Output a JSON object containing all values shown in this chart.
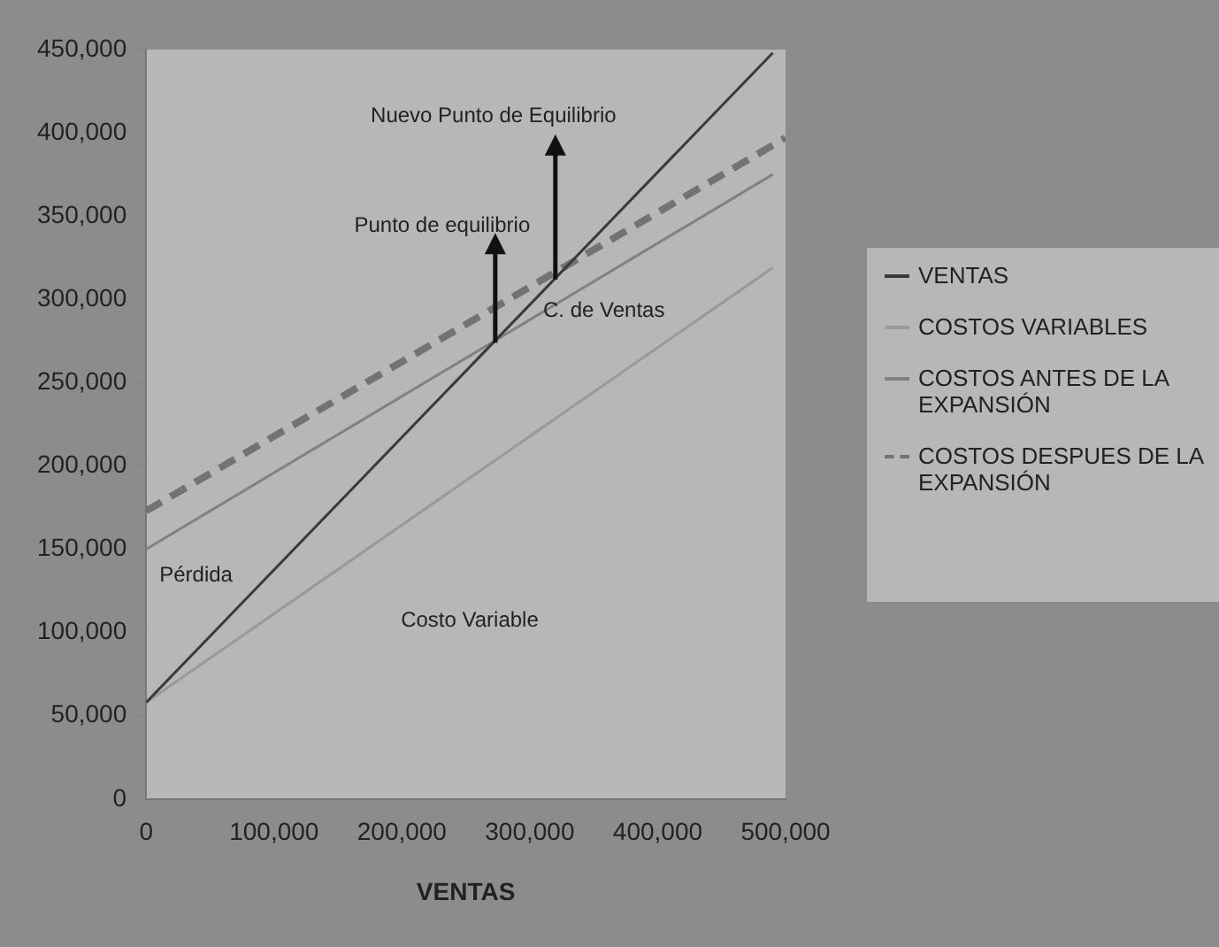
{
  "chart_data": {
    "type": "line",
    "xlabel": "VENTAS",
    "xlim": [
      0,
      500000
    ],
    "xticks": [
      0,
      {
        "value": 100000,
        "label": "100,000"
      },
      {
        "value": 200000,
        "label": "200,000"
      },
      {
        "value": 300000,
        "label": "300,000"
      },
      {
        "value": 400000,
        "label": "400,000"
      },
      {
        "value": 500000,
        "label": "500,000"
      }
    ],
    "ylim": [
      0,
      450000
    ],
    "yticks": [
      0,
      {
        "value": 50000,
        "label": "50,000"
      },
      {
        "value": 100000,
        "label": "100,000"
      },
      {
        "value": 150000,
        "label": "150,000"
      },
      {
        "value": 200000,
        "label": "200,000"
      },
      {
        "value": 250000,
        "label": "250,000"
      },
      {
        "value": 300000,
        "label": "300,000"
      },
      {
        "value": 350000,
        "label": "350,000"
      },
      {
        "value": 400000,
        "label": "400,000"
      },
      {
        "value": 450000,
        "label": "450,000"
      }
    ],
    "grid": false,
    "legend": "right",
    "marker": "none",
    "series": [
      {
        "name": "VENTAS",
        "color": "#3a3a3c",
        "x": [
          0,
          490000
        ],
        "values": [
          58000,
          448000
        ]
      },
      {
        "name": "COSTOS VARIABLES",
        "color": "#98999b",
        "x": [
          0,
          490000
        ],
        "values": [
          58000,
          319000
        ]
      },
      {
        "name": "COSTOS ANTES DE LA EXPANSIÓN",
        "color": "#808183",
        "x": [
          0,
          490000
        ],
        "values": [
          150000,
          375000
        ]
      },
      {
        "name": "COSTOS DESPUES DE LA EXPANSIÓN",
        "color": "#727375",
        "line_style": "dashed",
        "x": [
          0,
          500000
        ],
        "values": [
          173000,
          397000
        ]
      }
    ],
    "annotations": [
      {
        "text": "Nuevo Punto de Equilibrio",
        "x": 320000,
        "y": 312000
      },
      {
        "text": "Punto de equilibrio",
        "x": 273000,
        "y": 274000
      },
      "C. de Ventas",
      "Pérdida",
      "Costo Variable"
    ]
  }
}
